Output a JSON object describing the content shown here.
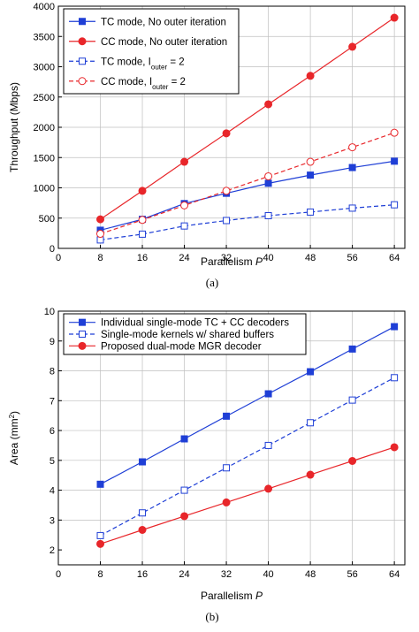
{
  "chart_data": [
    {
      "type": "line",
      "caption": "(a)",
      "title": "",
      "xlabel": "Parallelism",
      "xlabel_var": "P",
      "ylabel": "Throughput (Mbps)",
      "xlim": [
        0,
        66
      ],
      "ylim": [
        0,
        4000
      ],
      "xticks": [
        0,
        8,
        16,
        24,
        32,
        40,
        48,
        56,
        64
      ],
      "yticks": [
        0,
        500,
        1000,
        1500,
        2000,
        2500,
        3000,
        3500,
        4000
      ],
      "grid": true,
      "legend_position": "top-left",
      "x": [
        8,
        16,
        24,
        32,
        40,
        48,
        56,
        64
      ],
      "series": [
        {
          "name": "TC mode, No outer iteration",
          "legend_sub": "",
          "legend_tail": "",
          "color": "#1f3fd6",
          "dash": false,
          "marker": "square",
          "filled": true,
          "values": [
            300,
            480,
            740,
            910,
            1075,
            1210,
            1335,
            1440
          ]
        },
        {
          "name": "CC mode, No outer iteration",
          "legend_sub": "",
          "legend_tail": "",
          "color": "#e8262a",
          "dash": false,
          "marker": "circle",
          "filled": true,
          "values": [
            480,
            950,
            1430,
            1900,
            2380,
            2850,
            3330,
            3810
          ]
        },
        {
          "name": "TC mode, I",
          "legend_sub": "outer",
          "legend_tail": " = 2",
          "color": "#1f3fd6",
          "dash": true,
          "marker": "square",
          "filled": false,
          "values": [
            140,
            235,
            370,
            460,
            540,
            600,
            665,
            720
          ]
        },
        {
          "name": "CC mode, I",
          "legend_sub": "outer",
          "legend_tail": " = 2",
          "color": "#e8262a",
          "dash": true,
          "marker": "circle",
          "filled": false,
          "values": [
            240,
            470,
            710,
            950,
            1190,
            1430,
            1670,
            1910
          ]
        }
      ]
    },
    {
      "type": "line",
      "caption": "(b)",
      "title": "",
      "xlabel": "Parallelism",
      "xlabel_var": "P",
      "ylabel": "Area (mm",
      "ylabel_sup": "2",
      "ylabel_tail": ")",
      "xlim": [
        0,
        66
      ],
      "ylim": [
        1.5,
        10
      ],
      "xticks": [
        0,
        8,
        16,
        24,
        32,
        40,
        48,
        56,
        64
      ],
      "yticks": [
        2,
        3,
        4,
        5,
        6,
        7,
        8,
        9,
        10
      ],
      "grid": true,
      "legend_position": "top-left",
      "x": [
        8,
        16,
        24,
        32,
        40,
        48,
        56,
        64
      ],
      "series": [
        {
          "name": "Individual single-mode TC + CC decoders",
          "legend_sub": "",
          "legend_tail": "",
          "color": "#1f3fd6",
          "dash": false,
          "marker": "square",
          "filled": true,
          "values": [
            4.2,
            4.95,
            5.72,
            6.48,
            7.23,
            7.97,
            8.73,
            9.48
          ]
        },
        {
          "name": "Single-mode kernels w/ shared buffers",
          "legend_sub": "",
          "legend_tail": "",
          "color": "#1f3fd6",
          "dash": true,
          "marker": "square",
          "filled": false,
          "values": [
            2.48,
            3.24,
            4.0,
            4.75,
            5.5,
            6.26,
            7.02,
            7.77
          ]
        },
        {
          "name": "Proposed dual-mode MGR decoder",
          "legend_sub": "",
          "legend_tail": "",
          "color": "#e8262a",
          "dash": false,
          "marker": "circle",
          "filled": true,
          "values": [
            2.2,
            2.67,
            3.13,
            3.59,
            4.05,
            4.52,
            4.98,
            5.44
          ]
        }
      ]
    }
  ]
}
